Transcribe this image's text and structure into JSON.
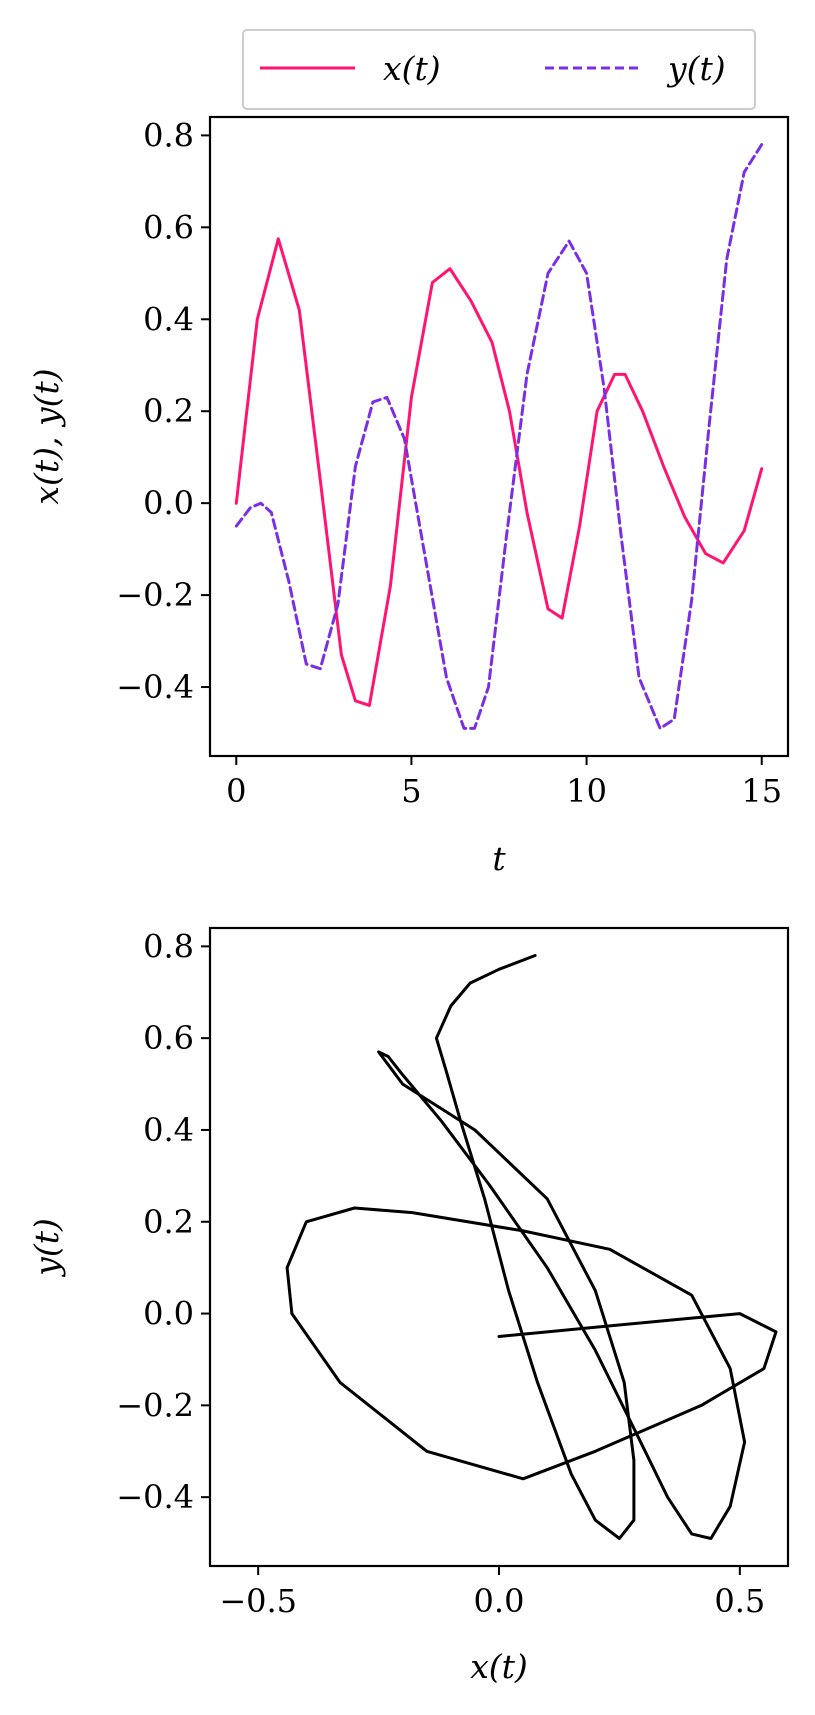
{
  "chart_data": [
    {
      "type": "line",
      "xlabel": "t",
      "ylabel": "x(t), y(t)",
      "xlim": [
        -0.75,
        15.75
      ],
      "ylim": [
        -0.55,
        0.84
      ],
      "xticks": [
        0,
        5,
        10,
        15
      ],
      "yticks": [
        0.8,
        0.6,
        0.4,
        0.2,
        0.0,
        -0.2,
        -0.4
      ],
      "xtick_labels": [
        "0",
        "5",
        "10",
        "15"
      ],
      "ytick_labels": [
        "0.8",
        "0.6",
        "0.4",
        "0.2",
        "0.0",
        "−0.2",
        "−0.4"
      ],
      "grid": false,
      "legend_position": "top-center-outside",
      "series": [
        {
          "name": "x(t)",
          "color": "#ff1472",
          "style": "solid",
          "x": [
            0,
            0.6,
            1.2,
            1.8,
            2.4,
            3.0,
            3.4,
            3.8,
            4.4,
            5.0,
            5.6,
            6.1,
            6.7,
            7.3,
            7.8,
            8.3,
            8.9,
            9.3,
            9.8,
            10.3,
            10.8,
            11.1,
            11.6,
            12.2,
            12.8,
            13.4,
            13.9,
            14.5,
            15.0
          ],
          "y": [
            0.0,
            0.4,
            0.575,
            0.42,
            0.05,
            -0.33,
            -0.43,
            -0.44,
            -0.18,
            0.23,
            0.48,
            0.51,
            0.44,
            0.35,
            0.2,
            -0.02,
            -0.23,
            -0.25,
            -0.05,
            0.2,
            0.28,
            0.28,
            0.2,
            0.08,
            -0.03,
            -0.11,
            -0.13,
            -0.06,
            0.075
          ]
        },
        {
          "name": "y(t)",
          "color": "#7b2fe4",
          "style": "dashed",
          "x": [
            0,
            0.4,
            0.7,
            1.0,
            1.5,
            2.0,
            2.4,
            2.9,
            3.4,
            3.9,
            4.3,
            4.8,
            5.4,
            6.0,
            6.5,
            6.8,
            7.2,
            7.7,
            8.3,
            8.9,
            9.5,
            10.0,
            10.5,
            11.0,
            11.5,
            12.1,
            12.5,
            13.0,
            13.5,
            14.0,
            14.5,
            15.0
          ],
          "y": [
            -0.05,
            -0.01,
            0.0,
            -0.02,
            -0.17,
            -0.35,
            -0.36,
            -0.22,
            0.08,
            0.22,
            0.23,
            0.14,
            -0.12,
            -0.38,
            -0.49,
            -0.49,
            -0.4,
            -0.08,
            0.28,
            0.5,
            0.57,
            0.5,
            0.25,
            -0.08,
            -0.38,
            -0.49,
            -0.47,
            -0.21,
            0.17,
            0.53,
            0.72,
            0.78
          ]
        }
      ]
    },
    {
      "type": "line",
      "xlabel": "x(t)",
      "ylabel": "y(t)",
      "xlim": [
        -0.6,
        0.6
      ],
      "ylim": [
        -0.55,
        0.84
      ],
      "xticks": [
        -0.5,
        0.0,
        0.5
      ],
      "yticks": [
        0.8,
        0.6,
        0.4,
        0.2,
        0.0,
        -0.2,
        -0.4
      ],
      "xtick_labels": [
        "−0.5",
        "0.0",
        "0.5"
      ],
      "ytick_labels": [
        "0.8",
        "0.6",
        "0.4",
        "0.2",
        "0.0",
        "−0.2",
        "−0.4"
      ],
      "grid": false,
      "series": [
        {
          "color": "#000000",
          "style": "solid",
          "x": [
            0.0,
            0.2,
            0.4,
            0.5,
            0.575,
            0.55,
            0.42,
            0.2,
            0.05,
            -0.15,
            -0.33,
            -0.43,
            -0.44,
            -0.4,
            -0.3,
            -0.18,
            0.05,
            0.23,
            0.4,
            0.48,
            0.51,
            0.48,
            0.44,
            0.4,
            0.35,
            0.28,
            0.2,
            0.1,
            -0.02,
            -0.12,
            -0.2,
            -0.23,
            -0.25,
            -0.2,
            -0.05,
            0.1,
            0.2,
            0.26,
            0.28,
            0.28,
            0.25,
            0.2,
            0.15,
            0.08,
            0.02,
            -0.03,
            -0.08,
            -0.11,
            -0.13,
            -0.1,
            -0.06,
            0.0,
            0.05,
            0.075
          ],
          "y": [
            -0.05,
            -0.03,
            -0.01,
            0.0,
            -0.04,
            -0.12,
            -0.2,
            -0.3,
            -0.36,
            -0.3,
            -0.15,
            0.0,
            0.1,
            0.2,
            0.23,
            0.22,
            0.18,
            0.14,
            0.04,
            -0.12,
            -0.28,
            -0.42,
            -0.49,
            -0.48,
            -0.4,
            -0.25,
            -0.08,
            0.1,
            0.28,
            0.42,
            0.52,
            0.56,
            0.57,
            0.5,
            0.4,
            0.25,
            0.05,
            -0.15,
            -0.32,
            -0.45,
            -0.49,
            -0.45,
            -0.35,
            -0.15,
            0.05,
            0.25,
            0.42,
            0.53,
            0.6,
            0.67,
            0.72,
            0.75,
            0.77,
            0.78
          ]
        }
      ]
    }
  ]
}
